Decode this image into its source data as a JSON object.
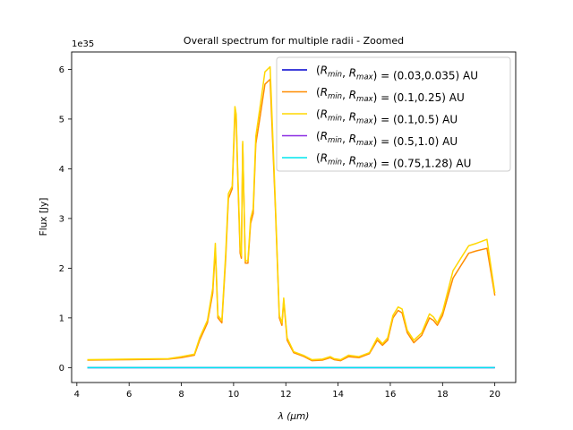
{
  "chart_data": {
    "type": "line",
    "title": "Overall spectrum for multiple radii - Zoomed",
    "xlabel": "λ (μm)",
    "ylabel": "Flux [Jy]",
    "offset_label": "1e35",
    "xlim": [
      3.8,
      20.8
    ],
    "ylim": [
      -0.3,
      6.35
    ],
    "xticks": [
      4,
      6,
      8,
      10,
      12,
      14,
      16,
      18,
      20
    ],
    "yticks": [
      0,
      1,
      2,
      3,
      4,
      5,
      6
    ],
    "grid": false,
    "legend_position": "top-right",
    "series": [
      {
        "name": "(Rmin, Rmax) = (0.03,0.035) AU",
        "legend_prefix": "R",
        "color": "#0000cd",
        "x": [
          4.4,
          20.0
        ],
        "y": [
          0.0,
          0.0
        ]
      },
      {
        "name": "(Rmin, Rmax) = (0.1,0.25) AU",
        "color": "#ff8c00",
        "x": [
          4.4,
          6.0,
          7.5,
          8.0,
          8.5,
          8.7,
          9.0,
          9.2,
          9.3,
          9.4,
          9.55,
          9.7,
          9.8,
          9.95,
          10.05,
          10.1,
          10.15,
          10.25,
          10.3,
          10.35,
          10.45,
          10.55,
          10.65,
          10.75,
          10.85,
          11.0,
          11.2,
          11.4,
          11.6,
          11.75,
          11.85,
          11.92,
          12.05,
          12.3,
          12.7,
          13.0,
          13.4,
          13.7,
          13.85,
          14.1,
          14.4,
          14.8,
          15.2,
          15.5,
          15.7,
          15.9,
          16.1,
          16.3,
          16.45,
          16.65,
          16.9,
          17.2,
          17.5,
          17.65,
          17.8,
          18.0,
          18.4,
          18.7,
          19.0,
          19.3,
          19.7,
          20.0
        ],
        "y": [
          0.15,
          0.16,
          0.17,
          0.2,
          0.25,
          0.55,
          0.9,
          1.5,
          2.4,
          1.0,
          0.9,
          2.2,
          3.4,
          3.6,
          5.1,
          5.0,
          4.0,
          2.3,
          2.2,
          4.5,
          2.1,
          2.1,
          2.9,
          3.1,
          4.5,
          5.0,
          5.7,
          5.8,
          3.2,
          1.0,
          0.85,
          1.35,
          0.55,
          0.3,
          0.22,
          0.14,
          0.15,
          0.2,
          0.16,
          0.14,
          0.22,
          0.2,
          0.28,
          0.55,
          0.45,
          0.55,
          1.0,
          1.15,
          1.1,
          0.7,
          0.5,
          0.65,
          1.0,
          0.95,
          0.85,
          1.05,
          1.8,
          2.05,
          2.3,
          2.35,
          2.4,
          1.45
        ]
      },
      {
        "name": "(Rmin, Rmax) = (0.1,0.5) AU",
        "color": "#ffd700",
        "x": [
          4.4,
          6.0,
          7.5,
          8.0,
          8.5,
          8.7,
          9.0,
          9.2,
          9.3,
          9.4,
          9.55,
          9.7,
          9.8,
          9.95,
          10.05,
          10.1,
          10.15,
          10.25,
          10.3,
          10.35,
          10.45,
          10.55,
          10.65,
          10.75,
          10.85,
          11.0,
          11.2,
          11.4,
          11.6,
          11.75,
          11.85,
          11.92,
          12.05,
          12.3,
          12.7,
          13.0,
          13.4,
          13.7,
          13.85,
          14.1,
          14.4,
          14.8,
          15.2,
          15.5,
          15.7,
          15.9,
          16.1,
          16.3,
          16.45,
          16.65,
          16.9,
          17.2,
          17.5,
          17.65,
          17.8,
          18.0,
          18.4,
          18.7,
          19.0,
          19.3,
          19.7,
          20.0
        ],
        "y": [
          0.16,
          0.17,
          0.18,
          0.22,
          0.27,
          0.6,
          0.95,
          1.6,
          2.5,
          1.05,
          0.95,
          2.3,
          3.5,
          3.65,
          5.25,
          5.1,
          4.1,
          2.4,
          2.25,
          4.55,
          2.15,
          2.15,
          3.0,
          3.2,
          4.65,
          5.2,
          5.95,
          6.05,
          3.3,
          1.05,
          0.9,
          1.4,
          0.6,
          0.32,
          0.24,
          0.16,
          0.17,
          0.22,
          0.18,
          0.16,
          0.25,
          0.22,
          0.3,
          0.6,
          0.48,
          0.6,
          1.05,
          1.22,
          1.18,
          0.75,
          0.55,
          0.7,
          1.08,
          1.02,
          0.9,
          1.12,
          1.95,
          2.2,
          2.45,
          2.5,
          2.58,
          1.5
        ]
      },
      {
        "name": "(Rmin, Rmax) = (0.5,1.0) AU",
        "color": "#8a2be2",
        "x": [
          4.4,
          20.0
        ],
        "y": [
          0.0,
          0.0
        ]
      },
      {
        "name": "(Rmin, Rmax) = (0.75,1.28) AU",
        "color": "#00e5ee",
        "x": [
          4.4,
          20.0
        ],
        "y": [
          0.0,
          0.0
        ]
      }
    ],
    "legend_labels": [
      {
        "values": "(0.03,0.035) AU"
      },
      {
        "values": "(0.1,0.25) AU"
      },
      {
        "values": "(0.1,0.5) AU"
      },
      {
        "values": "(0.5,1.0) AU"
      },
      {
        "values": "(0.75,1.28) AU"
      }
    ]
  }
}
